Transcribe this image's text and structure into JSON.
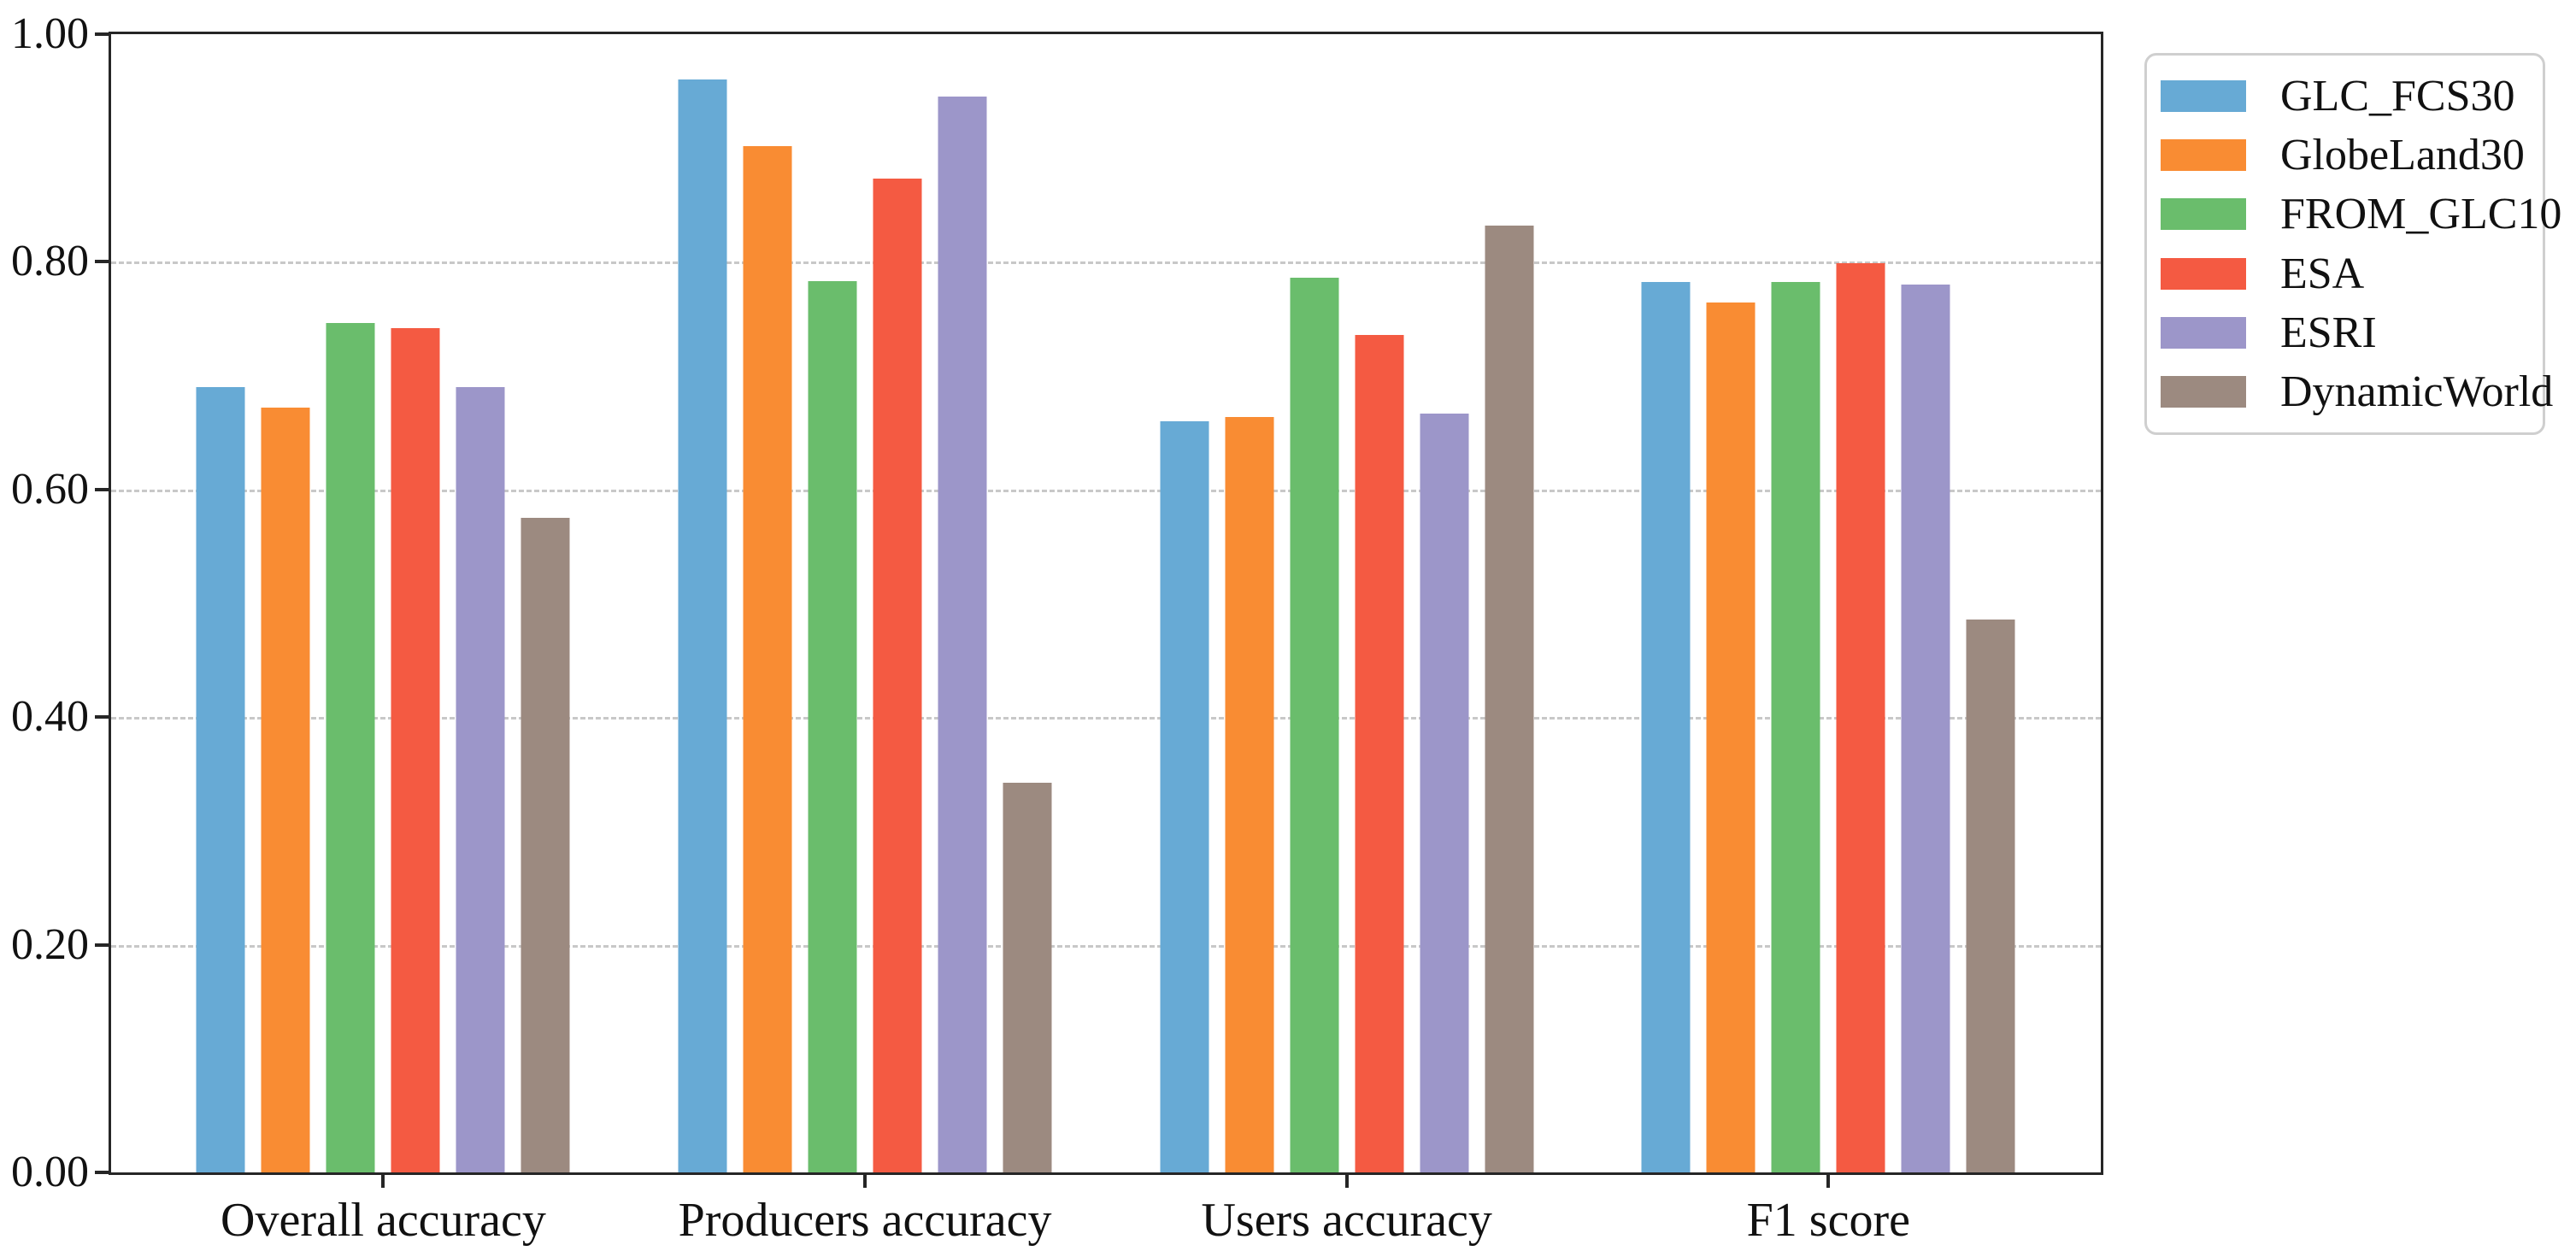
{
  "figure": {
    "background": "#ffffff",
    "axis_color": "#262626",
    "grid_color": "#c8c8c8",
    "text_color": "#111111",
    "legend_border_color": "#cfcfcf"
  },
  "chart_data": {
    "type": "bar",
    "title": "",
    "xlabel": "",
    "ylabel": "",
    "ylim": [
      0.0,
      1.0
    ],
    "grid": "horizontal dashed",
    "legend_position": "outside upper right",
    "yticks": [
      {
        "label": "0.00",
        "value": 0.0
      },
      {
        "label": "0.20",
        "value": 0.2
      },
      {
        "label": "0.40",
        "value": 0.4
      },
      {
        "label": "0.60",
        "value": 0.6
      },
      {
        "label": "0.80",
        "value": 0.8
      },
      {
        "label": "1.00",
        "value": 1.0
      }
    ],
    "categories": [
      "Overall accuracy",
      "Producers accuracy",
      "Users accuracy",
      "F1 score"
    ],
    "series": [
      {
        "name": "GLC_FCS30",
        "color": "#67aad5",
        "values": [
          0.69,
          0.96,
          0.66,
          0.782
        ]
      },
      {
        "name": "GlobeLand30",
        "color": "#f98c33",
        "values": [
          0.672,
          0.902,
          0.664,
          0.764
        ]
      },
      {
        "name": "FROM_GLC10",
        "color": "#6abd6c",
        "values": [
          0.746,
          0.783,
          0.786,
          0.782
        ]
      },
      {
        "name": "ESA",
        "color": "#f45a42",
        "values": [
          0.742,
          0.873,
          0.736,
          0.799
        ]
      },
      {
        "name": "ESRI",
        "color": "#9c96c9",
        "values": [
          0.69,
          0.945,
          0.667,
          0.78
        ]
      },
      {
        "name": "DynamicWorld",
        "color": "#9c8a80",
        "values": [
          0.575,
          0.342,
          0.832,
          0.486
        ]
      }
    ]
  }
}
